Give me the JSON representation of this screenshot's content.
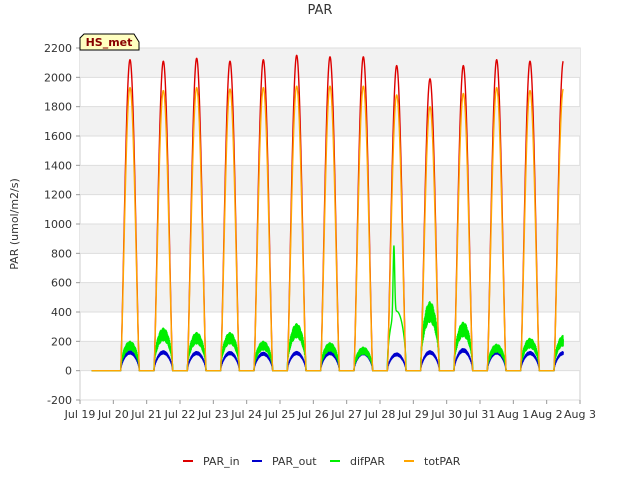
{
  "chart_data": {
    "type": "line",
    "title": "PAR",
    "xlabel": "",
    "ylabel": "PAR (umol/m2/s)",
    "ylim": [
      -200,
      2200
    ],
    "yticks": [
      -200,
      0,
      200,
      400,
      600,
      800,
      1000,
      1200,
      1400,
      1600,
      1800,
      2000,
      2200
    ],
    "xlim": [
      0,
      15
    ],
    "xtick_labels": [
      "Jul 19",
      "Jul 20",
      "Jul 21",
      "Jul 22",
      "Jul 23",
      "Jul 24",
      "Jul 25",
      "Jul 26",
      "Jul 27",
      "Jul 28",
      "Jul 29",
      "Jul 30",
      "Jul 31",
      "Aug 1",
      "Aug 2",
      "Aug 3"
    ],
    "grid": true,
    "station_label": "HS_met",
    "legend_position": "bottom-center",
    "day_range": [
      0.35,
      14.5
    ],
    "series": [
      {
        "name": "PAR_in",
        "color": "#dd0000",
        "daily_peak": [
          2120,
          2110,
          2130,
          2110,
          2120,
          2150,
          2140,
          2140,
          2080,
          1990,
          2080,
          2120,
          2110,
          2110
        ]
      },
      {
        "name": "PAR_out",
        "color": "#0000cc",
        "daily_peak": [
          135,
          135,
          130,
          130,
          125,
          130,
          130,
          130,
          120,
          135,
          150,
          135,
          130,
          130
        ]
      },
      {
        "name": "difPAR",
        "color": "#00ee00",
        "daily_peak": [
          200,
          290,
          260,
          260,
          200,
          320,
          190,
          160,
          900,
          470,
          330,
          180,
          220,
          240
        ]
      },
      {
        "name": "totPAR",
        "color": "#ffa500",
        "daily_peak": [
          1930,
          1910,
          1930,
          1920,
          1930,
          1940,
          1940,
          1940,
          1880,
          1800,
          1890,
          1930,
          1910,
          1920
        ]
      }
    ]
  }
}
